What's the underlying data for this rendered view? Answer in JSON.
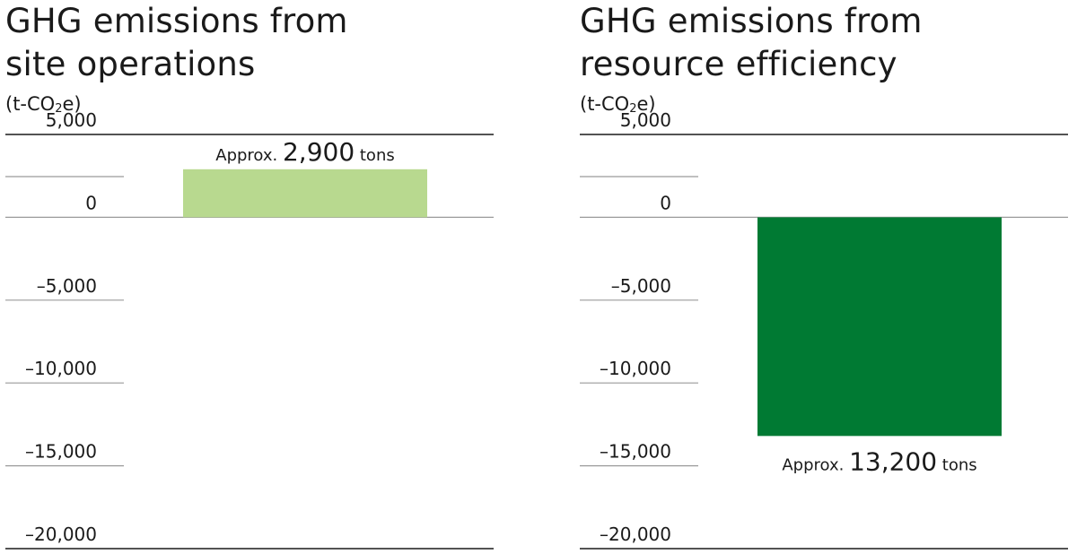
{
  "chart_data": [
    {
      "type": "bar",
      "title": "GHG emissions from\nsite operations",
      "unit": {
        "prefix": "(t-CO",
        "subscript": "2",
        "suffix": "e)"
      },
      "categories": [
        ""
      ],
      "values": [
        2900
      ],
      "ylim": [
        -20000,
        5000
      ],
      "yticks": [
        5000,
        0,
        -5000,
        -10000,
        -15000,
        -20000
      ],
      "ytick_labels": [
        "5,000",
        "0",
        "–5,000",
        "–10,000",
        "–15,000",
        "–20,000"
      ],
      "bar_color": "#b8d98f",
      "annotation": {
        "prefix": "Approx.",
        "value": "2,900",
        "suffix": "tons"
      },
      "grid": true
    },
    {
      "type": "bar",
      "title": "GHG emissions from\nresource efficiency",
      "unit": {
        "prefix": "(t-CO",
        "subscript": "2",
        "suffix": "e)"
      },
      "categories": [
        ""
      ],
      "values": [
        -13200
      ],
      "ylim": [
        -20000,
        5000
      ],
      "yticks": [
        5000,
        0,
        -5000,
        -10000,
        -15000,
        -20000
      ],
      "ytick_labels": [
        "5,000",
        "0",
        "–5,000",
        "–10,000",
        "–15,000",
        "–20,000"
      ],
      "bar_color": "#007a33",
      "annotation": {
        "prefix": "Approx.",
        "value": "13,200",
        "suffix": "tons"
      },
      "grid": true
    }
  ]
}
